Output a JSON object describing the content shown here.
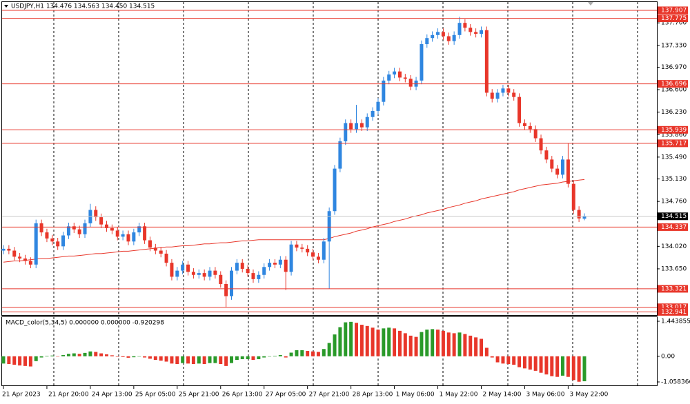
{
  "chart_data": [
    {
      "type": "candlestick",
      "title": "USDJPY,H1  134.476 134.563 134.450 134.515",
      "categories": [
        "21 Apr 2023",
        null,
        null,
        null,
        null,
        null,
        null,
        null,
        "21 Apr 20:00",
        null,
        null,
        null,
        null,
        null,
        null,
        null,
        "24 Apr 13:00",
        null,
        null,
        null,
        null,
        null,
        null,
        null,
        "25 Apr 05:00",
        null,
        null,
        null,
        null,
        null,
        null,
        null,
        "25 Apr 21:00",
        null,
        null,
        null,
        null,
        null,
        null,
        null,
        "26 Apr 13:00",
        null,
        null,
        null,
        null,
        null,
        null,
        null,
        "27 Apr 05:00",
        null,
        null,
        null,
        null,
        null,
        null,
        null,
        "27 Apr 21:00",
        null,
        null,
        null,
        null,
        null,
        null,
        null,
        "28 Apr 13:00",
        null,
        null,
        null,
        null,
        null,
        null,
        null,
        "1 May 06:00",
        null,
        null,
        null,
        null,
        null,
        null,
        null,
        "1 May 22:00",
        null,
        null,
        null,
        null,
        null,
        null,
        null,
        "2 May 14:00",
        null,
        null,
        null,
        null,
        null,
        null,
        null,
        "3 May 06:00",
        null,
        null,
        null,
        null,
        null,
        null,
        null,
        "3 May 22:00",
        null,
        null,
        null
      ],
      "open": [
        133.95,
        133.98,
        133.95,
        133.85,
        133.82,
        133.78,
        133.72,
        134.4,
        134.25,
        134.15,
        134.1,
        134.02,
        134.2,
        134.35,
        134.3,
        134.22,
        134.4,
        134.62,
        134.5,
        134.38,
        134.32,
        134.28,
        134.18,
        134.22,
        134.1,
        134.25,
        134.35,
        134.12,
        134.0,
        133.95,
        133.9,
        133.75,
        133.52,
        133.62,
        133.72,
        133.6,
        133.55,
        133.58,
        133.52,
        133.62,
        133.55,
        133.4,
        133.2,
        133.62,
        133.75,
        133.65,
        133.58,
        133.48,
        133.55,
        133.68,
        133.75,
        133.72,
        133.8,
        133.6,
        134.05,
        134.0,
        133.98,
        133.92,
        133.85,
        133.8,
        134.1,
        134.6,
        135.3,
        135.75,
        136.05,
        135.95,
        136.05,
        135.98,
        136.15,
        136.25,
        136.4,
        136.75,
        136.85,
        136.9,
        136.8,
        136.78,
        136.65,
        136.75,
        137.35,
        137.45,
        137.5,
        137.55,
        137.48,
        137.4,
        137.5,
        137.7,
        137.62,
        137.55,
        137.52,
        137.58,
        136.55,
        136.45,
        136.55,
        136.62,
        136.55,
        136.48,
        136.05,
        136.0,
        135.95,
        135.8,
        135.6,
        135.45,
        135.3,
        135.2,
        135.45,
        135.05,
        134.62,
        134.476
      ],
      "high": [
        134.04,
        134.04,
        134.01,
        133.91,
        133.88,
        133.84,
        134.46,
        134.46,
        134.31,
        134.21,
        134.16,
        134.26,
        134.41,
        134.41,
        134.36,
        134.46,
        134.72,
        134.68,
        134.56,
        134.44,
        134.38,
        134.34,
        134.28,
        134.28,
        134.31,
        134.41,
        134.41,
        134.18,
        134.06,
        134.01,
        133.96,
        133.81,
        133.68,
        133.78,
        133.78,
        133.66,
        133.64,
        133.64,
        133.68,
        133.68,
        133.61,
        133.46,
        133.68,
        133.81,
        133.81,
        133.71,
        133.64,
        133.61,
        133.74,
        133.81,
        133.81,
        133.86,
        133.86,
        134.11,
        134.11,
        134.06,
        134.04,
        133.98,
        133.91,
        134.16,
        134.66,
        135.36,
        135.81,
        136.11,
        136.11,
        136.35,
        136.11,
        136.21,
        136.31,
        136.46,
        136.81,
        136.91,
        136.96,
        136.96,
        136.86,
        136.84,
        136.81,
        137.41,
        137.51,
        137.56,
        137.61,
        137.61,
        137.54,
        137.56,
        137.8,
        137.76,
        137.68,
        137.61,
        137.64,
        137.64,
        136.61,
        136.61,
        136.68,
        136.68,
        136.61,
        136.54,
        136.11,
        136.06,
        136.01,
        135.86,
        135.66,
        135.51,
        135.36,
        135.51,
        135.72,
        135.11,
        134.68,
        134.563
      ],
      "low": [
        133.89,
        133.89,
        133.79,
        133.76,
        133.72,
        133.66,
        133.66,
        134.19,
        134.09,
        134.04,
        133.96,
        133.96,
        134.14,
        134.24,
        134.16,
        134.16,
        134.34,
        134.44,
        134.32,
        134.26,
        134.22,
        134.12,
        134.12,
        134.04,
        134.04,
        134.19,
        134.06,
        133.94,
        133.89,
        133.84,
        133.69,
        133.46,
        133.46,
        133.56,
        133.54,
        133.49,
        133.49,
        133.46,
        133.46,
        133.49,
        133.34,
        133.02,
        133.14,
        133.56,
        133.59,
        133.52,
        133.42,
        133.42,
        133.49,
        133.62,
        133.66,
        133.66,
        133.3,
        133.54,
        133.94,
        133.92,
        133.86,
        133.79,
        133.74,
        133.74,
        133.32,
        134.54,
        135.24,
        135.69,
        135.89,
        135.89,
        135.92,
        135.92,
        136.09,
        136.19,
        136.34,
        136.69,
        136.79,
        136.74,
        136.72,
        136.59,
        136.59,
        136.69,
        137.29,
        137.39,
        137.44,
        137.42,
        137.34,
        137.34,
        137.44,
        137.56,
        137.49,
        137.46,
        137.46,
        136.49,
        136.39,
        136.39,
        136.49,
        136.49,
        136.42,
        135.99,
        135.94,
        135.89,
        135.74,
        135.54,
        135.39,
        135.24,
        135.14,
        135.14,
        134.99,
        134.56,
        134.42,
        134.45
      ],
      "close": [
        133.98,
        133.95,
        133.85,
        133.82,
        133.78,
        133.72,
        134.4,
        134.25,
        134.15,
        134.1,
        134.02,
        134.2,
        134.35,
        134.3,
        134.22,
        134.4,
        134.62,
        134.5,
        134.38,
        134.32,
        134.28,
        134.18,
        134.22,
        134.1,
        134.25,
        134.35,
        134.12,
        134.0,
        133.95,
        133.9,
        133.75,
        133.52,
        133.62,
        133.72,
        133.6,
        133.55,
        133.58,
        133.52,
        133.62,
        133.55,
        133.4,
        133.2,
        133.62,
        133.75,
        133.65,
        133.58,
        133.48,
        133.55,
        133.68,
        133.75,
        133.72,
        133.8,
        133.6,
        134.05,
        134.0,
        133.98,
        133.92,
        133.85,
        133.8,
        134.1,
        134.6,
        135.3,
        135.75,
        136.05,
        135.95,
        136.05,
        135.98,
        136.15,
        136.25,
        136.4,
        136.75,
        136.85,
        136.9,
        136.8,
        136.78,
        136.65,
        136.75,
        137.35,
        137.45,
        137.5,
        137.55,
        137.48,
        137.4,
        137.5,
        137.7,
        137.62,
        137.55,
        137.52,
        137.58,
        136.55,
        136.45,
        136.55,
        136.62,
        136.55,
        136.48,
        136.05,
        136.0,
        135.95,
        135.8,
        135.6,
        135.45,
        135.3,
        135.2,
        135.45,
        135.05,
        134.62,
        134.48,
        134.515
      ],
      "up_color": "#2f86e0",
      "down_color": "#e8362a",
      "ma": {
        "color": "#e8362a",
        "values": [
          133.76,
          133.77,
          133.78,
          133.78,
          133.79,
          133.8,
          133.81,
          133.82,
          133.82,
          133.83,
          133.84,
          133.85,
          133.86,
          133.86,
          133.87,
          133.88,
          133.89,
          133.9,
          133.9,
          133.91,
          133.92,
          133.93,
          133.94,
          133.94,
          133.95,
          133.96,
          133.97,
          133.98,
          133.99,
          134.0,
          134.01,
          134.01,
          134.02,
          134.03,
          134.03,
          134.04,
          134.05,
          134.06,
          134.06,
          134.07,
          134.08,
          134.08,
          134.09,
          134.1,
          134.11,
          134.11,
          134.12,
          134.13,
          134.13,
          134.13,
          134.13,
          134.13,
          134.13,
          134.13,
          134.13,
          134.13,
          134.13,
          134.13,
          134.13,
          134.13,
          134.15,
          134.18,
          134.2,
          134.22,
          134.24,
          134.27,
          134.29,
          134.31,
          134.34,
          134.36,
          134.38,
          134.4,
          134.43,
          134.45,
          134.47,
          134.5,
          134.52,
          134.54,
          134.57,
          134.59,
          134.61,
          134.63,
          134.66,
          134.68,
          134.7,
          134.73,
          134.75,
          134.77,
          134.8,
          134.82,
          134.84,
          134.86,
          134.88,
          134.9,
          134.92,
          134.95,
          134.97,
          134.99,
          135.01,
          135.03,
          135.04,
          135.05,
          135.06,
          135.08,
          135.09,
          135.1,
          135.11,
          135.12
        ]
      },
      "levels": {
        "color": "#e8362a",
        "values": [
          137.907,
          137.775,
          136.696,
          135.939,
          135.717,
          134.337,
          133.321,
          133.017,
          132.941
        ]
      },
      "last_price": 134.515,
      "ylim": [
        132.9,
        138.02
      ],
      "yticks": [
        {
          "value": 137.7,
          "label": "137.700"
        },
        {
          "value": 137.33,
          "label": "137.330"
        },
        {
          "value": 136.97,
          "label": "136.970"
        },
        {
          "value": 136.6,
          "label": "136.600"
        },
        {
          "value": 136.23,
          "label": "136.230"
        },
        {
          "value": 135.86,
          "label": "135.860"
        },
        {
          "value": 135.49,
          "label": "135.490"
        },
        {
          "value": 135.13,
          "label": "135.130"
        },
        {
          "value": 134.76,
          "label": "134.760"
        },
        {
          "value": 134.02,
          "label": "134.020"
        },
        {
          "value": 133.65,
          "label": "133.650"
        }
      ]
    },
    {
      "type": "bar",
      "title": "MACD_color(5,34,5) 0.000000 0.000000 -0.920298",
      "up_color": "#2a9a2a",
      "down_color": "#e8362a",
      "values": [
        -0.3,
        -0.32,
        -0.35,
        -0.38,
        -0.4,
        -0.42,
        -0.2,
        -0.05,
        0.02,
        0.03,
        0.0,
        0.05,
        0.1,
        0.12,
        0.1,
        0.14,
        0.2,
        0.18,
        0.12,
        0.08,
        0.04,
        -0.02,
        -0.03,
        -0.06,
        -0.04,
        0.0,
        -0.05,
        -0.1,
        -0.15,
        -0.18,
        -0.22,
        -0.3,
        -0.32,
        -0.28,
        -0.3,
        -0.32,
        -0.3,
        -0.32,
        -0.28,
        -0.28,
        -0.32,
        -0.4,
        -0.28,
        -0.15,
        -0.12,
        -0.12,
        -0.15,
        -0.12,
        -0.05,
        0.0,
        0.02,
        0.05,
        -0.05,
        0.15,
        0.25,
        0.25,
        0.22,
        0.2,
        0.18,
        0.3,
        0.55,
        0.9,
        1.2,
        1.4,
        1.42,
        1.38,
        1.3,
        1.25,
        1.18,
        1.1,
        1.15,
        1.18,
        1.15,
        1.05,
        0.95,
        0.85,
        0.8,
        1.0,
        1.1,
        1.12,
        1.1,
        1.05,
        0.98,
        0.95,
        0.98,
        0.92,
        0.85,
        0.78,
        0.72,
        0.35,
        -0.05,
        -0.25,
        -0.3,
        -0.32,
        -0.35,
        -0.45,
        -0.5,
        -0.55,
        -0.6,
        -0.68,
        -0.75,
        -0.82,
        -0.85,
        -0.8,
        -0.85,
        -0.98,
        -1.05,
        -1.03
      ],
      "ylim": [
        -1.058366,
        1.443855
      ],
      "yticks": [
        1.443855,
        {
          "value": 0,
          "label": "0.00"
        },
        -1.058366
      ]
    }
  ]
}
